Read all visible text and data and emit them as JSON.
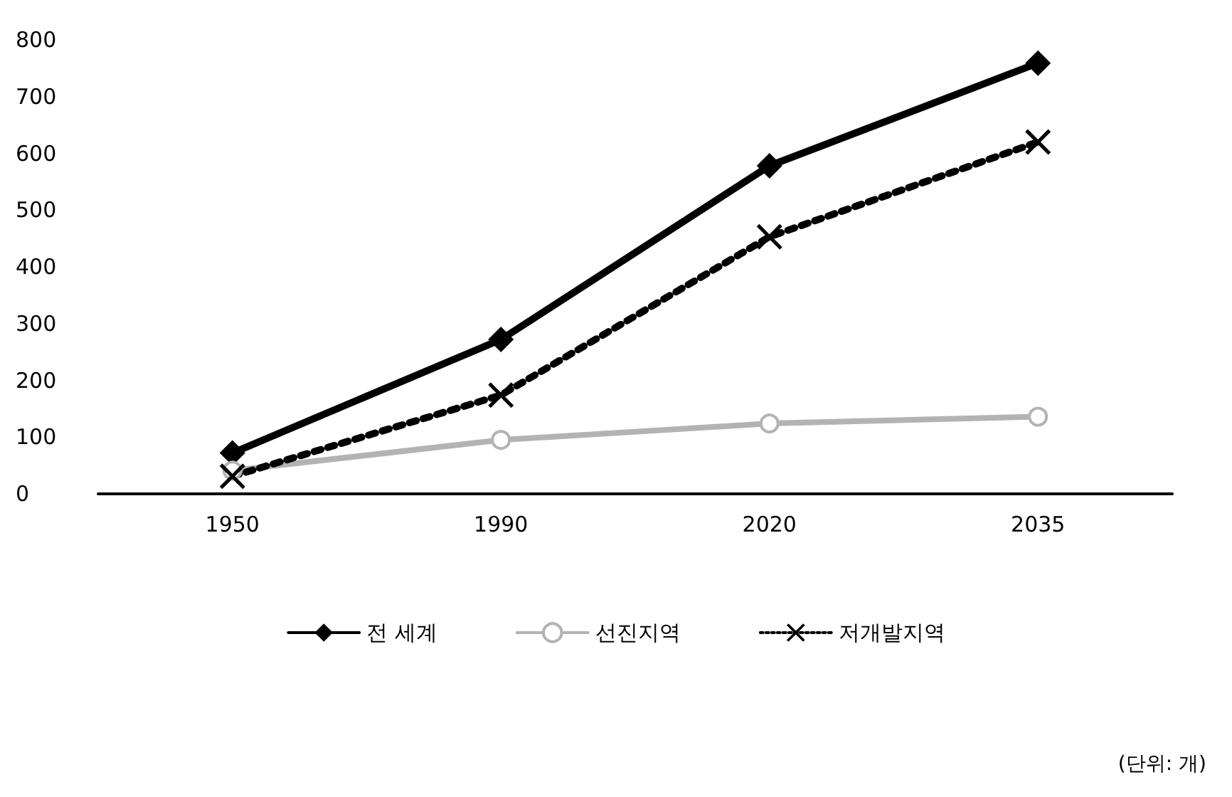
{
  "chart_data": {
    "type": "line",
    "categories": [
      "1950",
      "1990",
      "2020",
      "2035"
    ],
    "series": [
      {
        "name": "전 세계",
        "color": "#000000",
        "values": [
          72,
          272,
          578,
          759
        ],
        "marker": "diamond",
        "line_style": "solid"
      },
      {
        "name": "선진지역",
        "color": "#b3b3b3",
        "values": [
          41,
          95,
          124,
          136
        ],
        "marker": "circle",
        "line_style": "solid"
      },
      {
        "name": "저개발지역",
        "color": "#000000",
        "values": [
          31,
          174,
          453,
          620
        ],
        "marker": "cross",
        "line_style": "dotted"
      }
    ],
    "ylim": [
      0,
      800
    ],
    "yticks": [
      0,
      100,
      200,
      300,
      400,
      500,
      600,
      700,
      800
    ],
    "grid": false,
    "legend": "bottom",
    "annotations": [
      "(단위: 개)"
    ]
  }
}
